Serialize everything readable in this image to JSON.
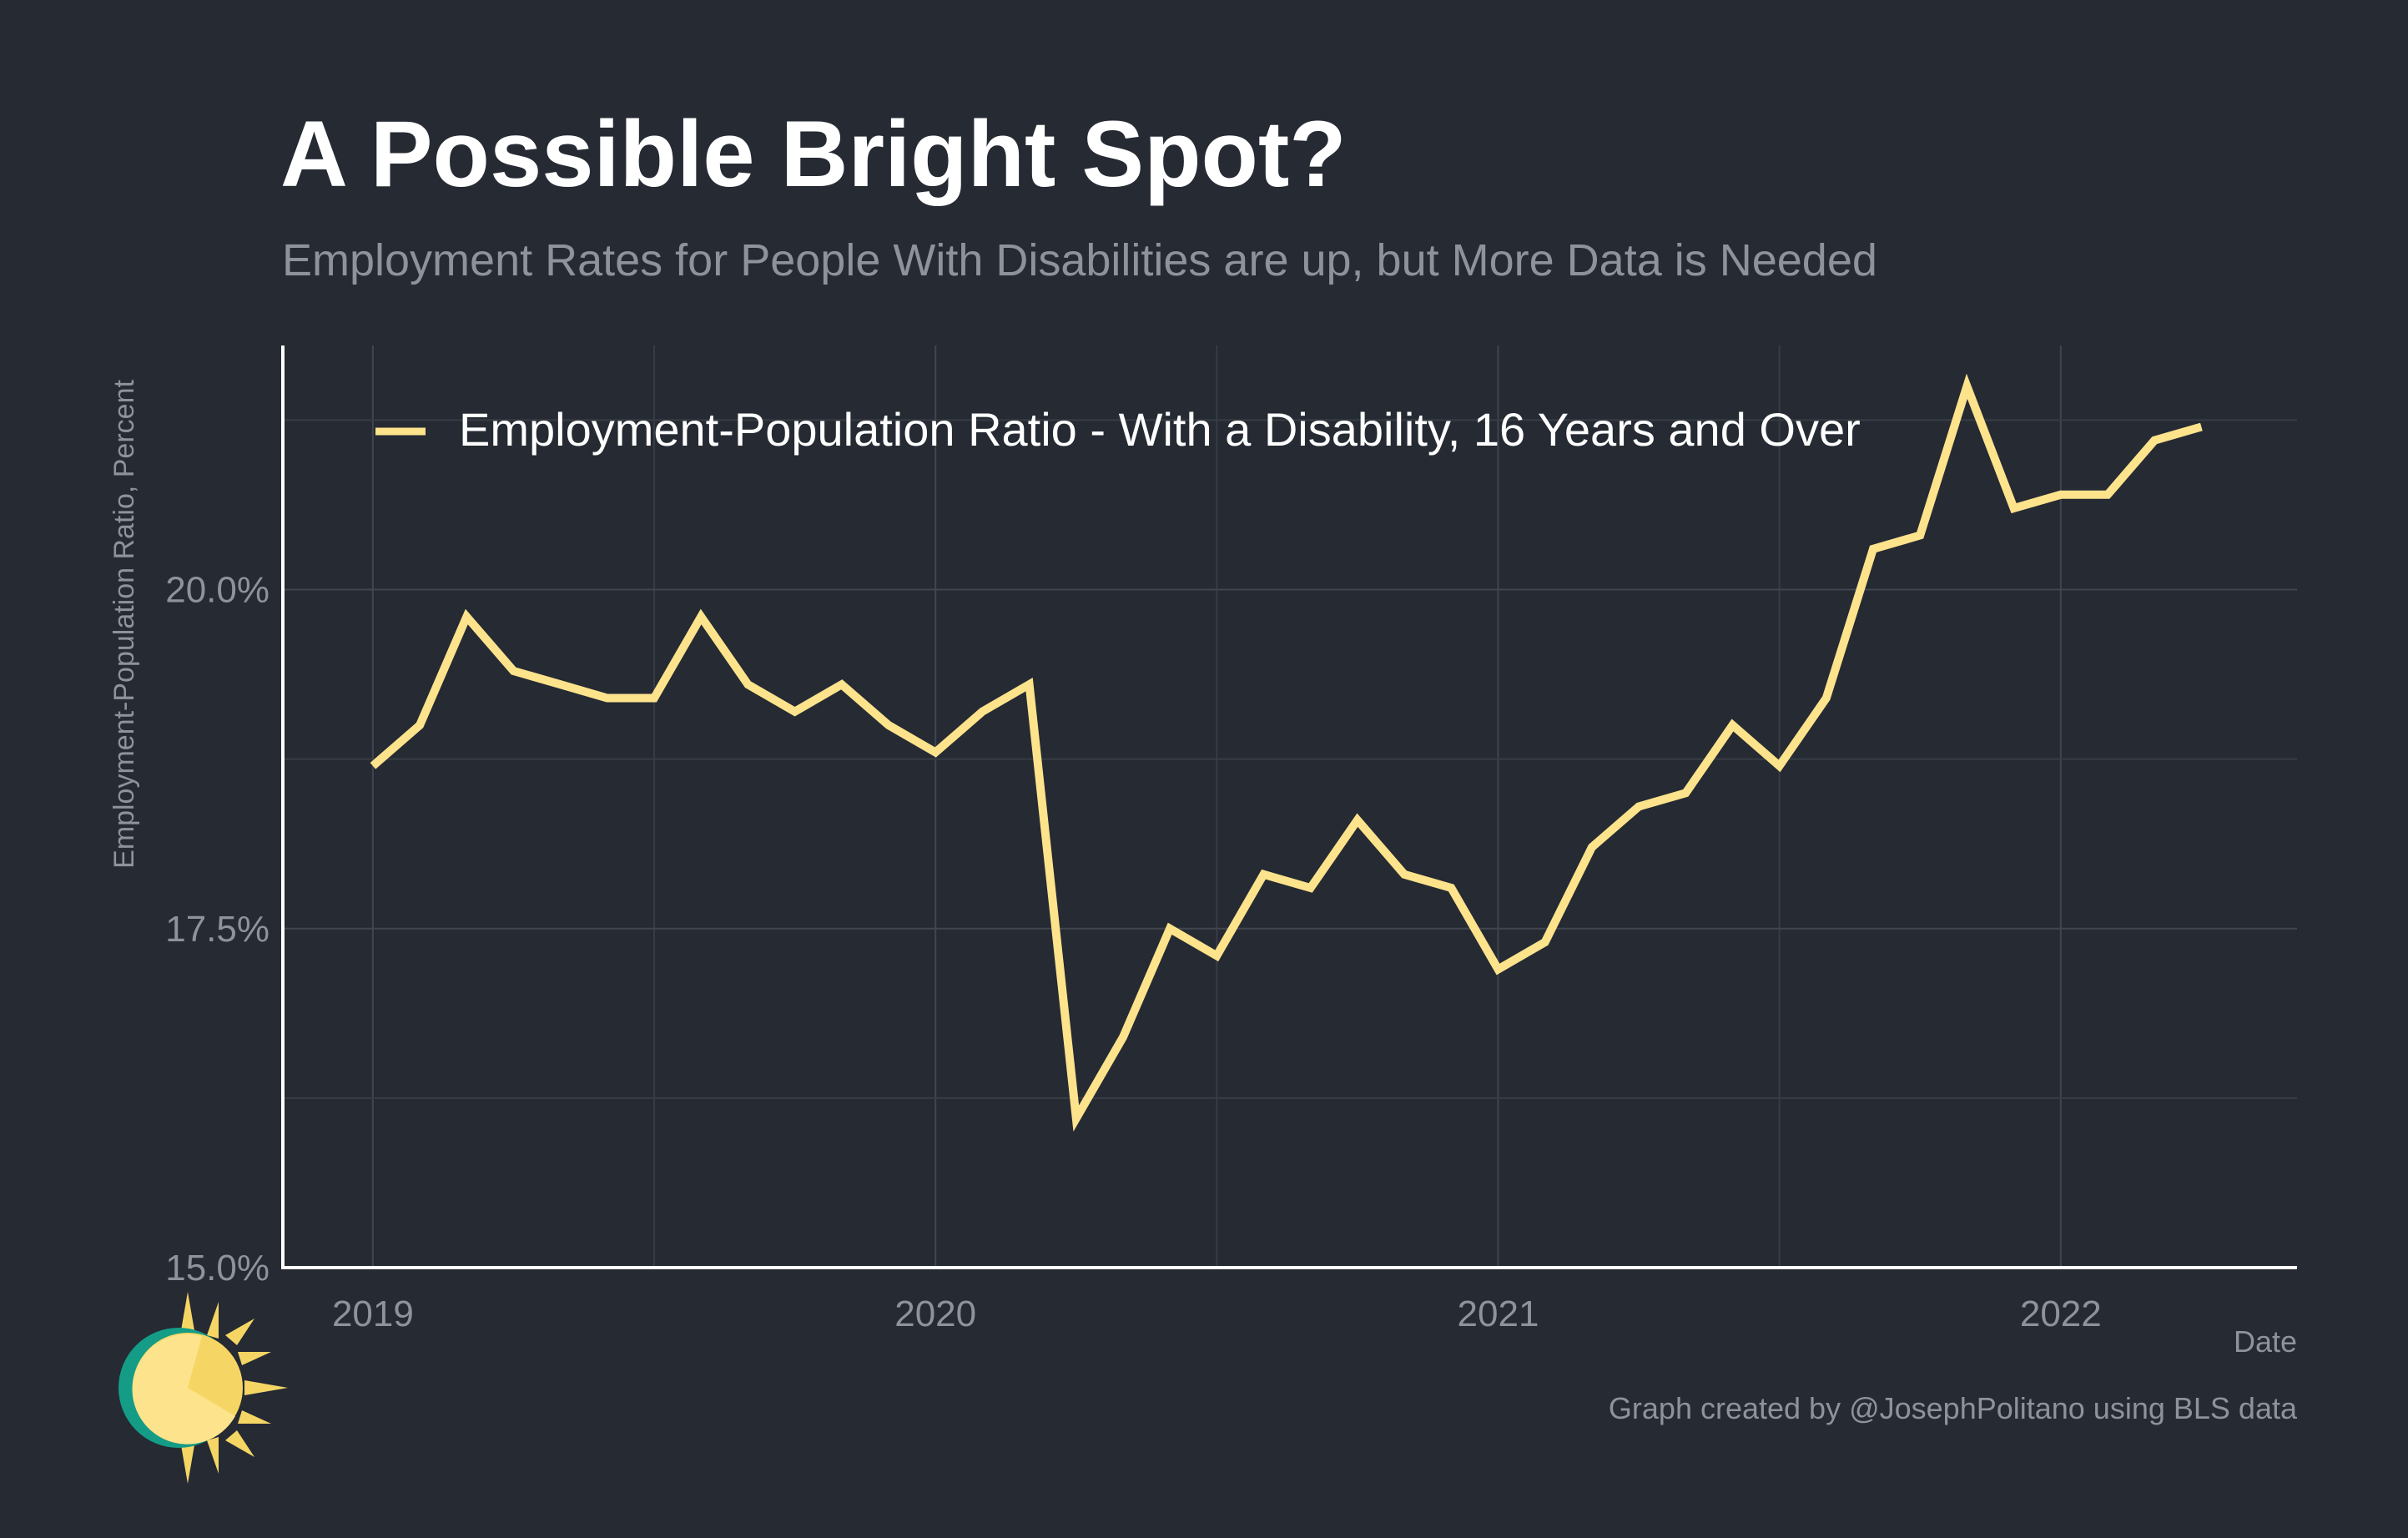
{
  "chart_data": {
    "type": "line",
    "title": "A Possible Bright Spot?",
    "subtitle": "Employment Rates for People With Disabilities are up, but More Data is Needed",
    "xlabel": "Date",
    "ylabel": "Employment-Population Ratio, Percent",
    "caption": "Graph created by @JosephPolitano using BLS data",
    "ylim": [
      15.0,
      21.8
    ],
    "y_ticks": [
      {
        "value": 15.0,
        "label": "15.0%"
      },
      {
        "value": 17.5,
        "label": "17.5%"
      },
      {
        "value": 20.0,
        "label": "20.0%"
      }
    ],
    "y_minor_gridlines": [
      16.25,
      18.75,
      21.25
    ],
    "x_ticks": [
      {
        "value": 2019,
        "label": "2019"
      },
      {
        "value": 2020,
        "label": "2020"
      },
      {
        "value": 2021,
        "label": "2021"
      },
      {
        "value": 2022,
        "label": "2022"
      }
    ],
    "x_minor_gridlines": [
      2019.5,
      2020.5,
      2021.5
    ],
    "grid": true,
    "legend_position": "top-left",
    "color": "#fde38b",
    "series": [
      {
        "name": "Employment-Population Ratio - With a Disability, 16 Years and Over",
        "x": [
          "2019-01",
          "2019-02",
          "2019-03",
          "2019-04",
          "2019-05",
          "2019-06",
          "2019-07",
          "2019-08",
          "2019-09",
          "2019-10",
          "2019-11",
          "2019-12",
          "2020-01",
          "2020-02",
          "2020-03",
          "2020-04",
          "2020-05",
          "2020-06",
          "2020-07",
          "2020-08",
          "2020-09",
          "2020-10",
          "2020-11",
          "2020-12",
          "2021-01",
          "2021-02",
          "2021-03",
          "2021-04",
          "2021-05",
          "2021-06",
          "2021-07",
          "2021-08",
          "2021-09",
          "2021-10",
          "2021-11",
          "2021-12",
          "2022-01",
          "2022-02",
          "2022-03",
          "2022-04"
        ],
        "values": [
          18.7,
          19.0,
          19.8,
          19.4,
          19.3,
          19.2,
          19.2,
          19.8,
          19.3,
          19.1,
          19.3,
          19.0,
          18.8,
          19.1,
          19.3,
          16.1,
          16.7,
          17.5,
          17.3,
          17.9,
          17.8,
          18.3,
          17.9,
          17.8,
          17.2,
          17.4,
          18.1,
          18.4,
          18.5,
          19.0,
          18.7,
          19.2,
          20.3,
          20.4,
          21.5,
          20.6,
          20.7,
          20.7,
          21.1,
          21.2
        ]
      }
    ]
  },
  "logo": {
    "name": "sun-logo-icon",
    "colors": [
      "#fde38b",
      "#f5d665",
      "#149c86"
    ]
  }
}
